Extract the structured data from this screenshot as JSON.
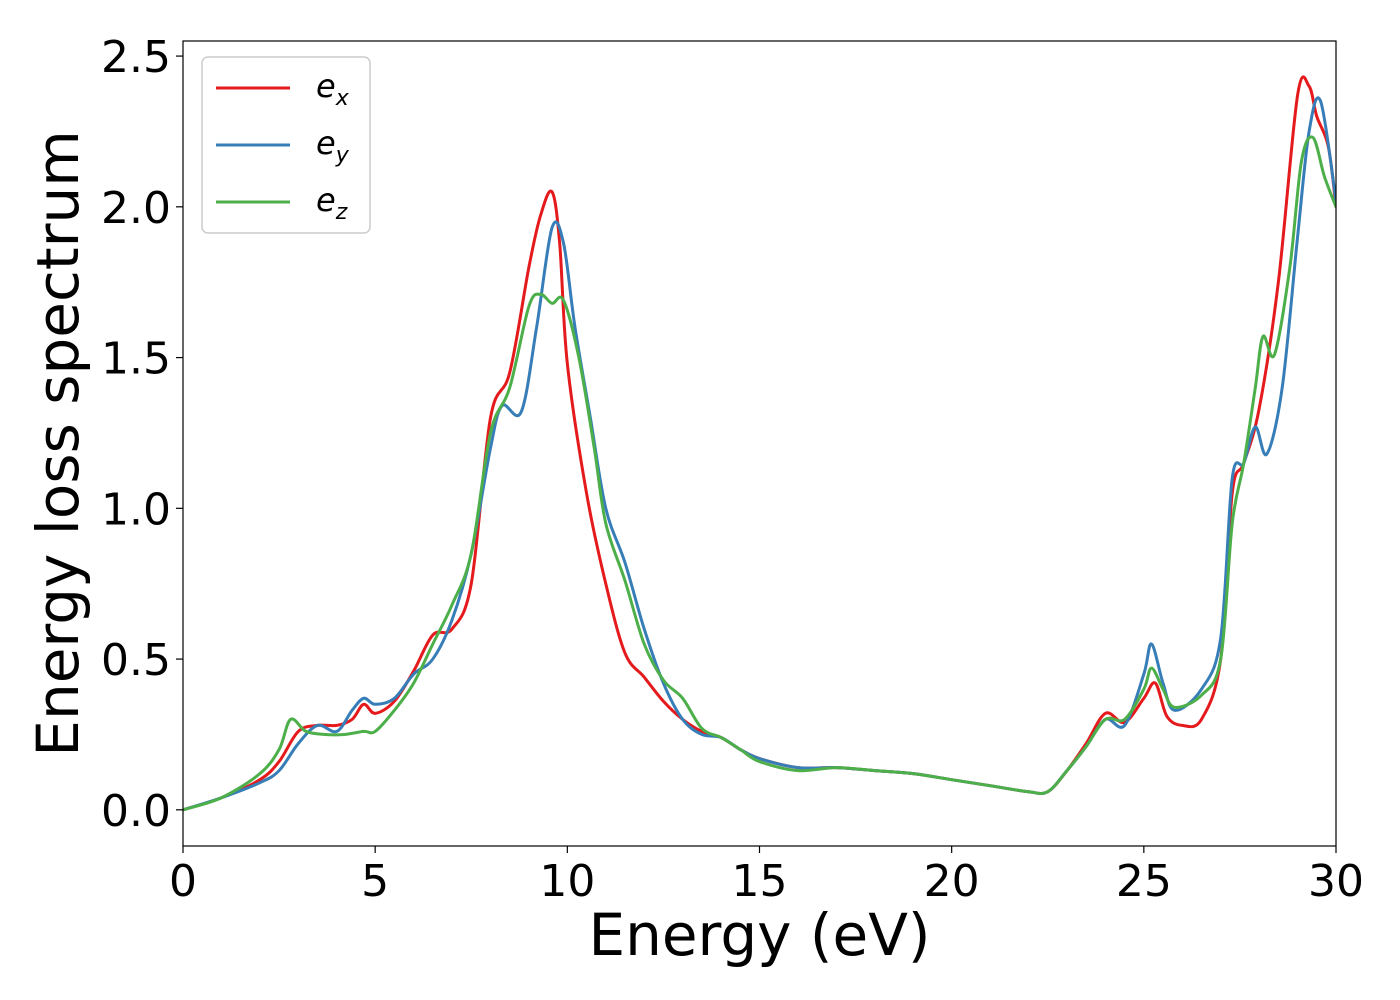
{
  "chart_data": {
    "type": "line",
    "xlabel": "Energy (eV)",
    "ylabel": "Energy loss spectrum",
    "xlim": [
      0,
      30
    ],
    "ylim": [
      -0.12,
      2.55
    ],
    "xticks": [
      0,
      5,
      10,
      15,
      20,
      25,
      30
    ],
    "xtick_labels": [
      "0",
      "5",
      "10",
      "15",
      "20",
      "25",
      "30"
    ],
    "yticks": [
      0.0,
      0.5,
      1.0,
      1.5,
      2.0,
      2.5
    ],
    "ytick_labels": [
      "0.0",
      "0.5",
      "1.0",
      "1.5",
      "2.0",
      "2.5"
    ],
    "grid": false,
    "legend_position": "top-left",
    "series": [
      {
        "name": "e",
        "subscript": "x",
        "color": "#e41a1c",
        "x": [
          0,
          1,
          2,
          2.5,
          3,
          3.5,
          4,
          4.4,
          4.7,
          5,
          5.5,
          6,
          6.5,
          7,
          7.5,
          8,
          8.5,
          9,
          9.3,
          9.6,
          9.8,
          10,
          10.5,
          11,
          11.5,
          12,
          12.5,
          13,
          13.5,
          14,
          14.5,
          15,
          16,
          17,
          18,
          19,
          20,
          21,
          22,
          22.5,
          23,
          23.5,
          24,
          24.5,
          25,
          25.3,
          25.6,
          26,
          26.5,
          27,
          27.3,
          27.6,
          28,
          28.5,
          29,
          29.3,
          29.5,
          29.8,
          30
        ],
        "y": [
          0.0,
          0.04,
          0.1,
          0.16,
          0.26,
          0.28,
          0.28,
          0.3,
          0.35,
          0.32,
          0.36,
          0.46,
          0.58,
          0.6,
          0.75,
          1.3,
          1.45,
          1.8,
          1.97,
          2.05,
          1.88,
          1.48,
          1.05,
          0.75,
          0.52,
          0.44,
          0.36,
          0.3,
          0.26,
          0.24,
          0.2,
          0.17,
          0.14,
          0.14,
          0.13,
          0.12,
          0.1,
          0.08,
          0.06,
          0.06,
          0.13,
          0.22,
          0.32,
          0.29,
          0.37,
          0.42,
          0.31,
          0.28,
          0.3,
          0.5,
          1.05,
          1.15,
          1.33,
          1.75,
          2.37,
          2.4,
          2.3,
          2.2,
          2.0
        ]
      },
      {
        "name": "e",
        "subscript": "y",
        "color": "#377eb8",
        "x": [
          0,
          1,
          2,
          2.5,
          3,
          3.5,
          4,
          4.4,
          4.7,
          5,
          5.5,
          6,
          6.5,
          7,
          7.5,
          8,
          8.3,
          8.8,
          9.2,
          9.6,
          9.9,
          10.2,
          10.6,
          11,
          11.5,
          12,
          12.5,
          13,
          13.5,
          14,
          14.5,
          15,
          16,
          17,
          18,
          19,
          20,
          21,
          22,
          22.5,
          23,
          23.5,
          24,
          24.5,
          25,
          25.2,
          25.5,
          25.8,
          26.5,
          27,
          27.3,
          27.6,
          27.9,
          28.2,
          28.6,
          29,
          29.3,
          29.6,
          30
        ],
        "y": [
          0.0,
          0.04,
          0.09,
          0.13,
          0.22,
          0.28,
          0.26,
          0.33,
          0.37,
          0.35,
          0.37,
          0.45,
          0.5,
          0.63,
          0.85,
          1.2,
          1.34,
          1.32,
          1.6,
          1.93,
          1.88,
          1.6,
          1.3,
          1.0,
          0.82,
          0.6,
          0.42,
          0.3,
          0.25,
          0.24,
          0.2,
          0.17,
          0.14,
          0.14,
          0.13,
          0.12,
          0.1,
          0.08,
          0.06,
          0.06,
          0.13,
          0.21,
          0.3,
          0.28,
          0.45,
          0.55,
          0.42,
          0.33,
          0.4,
          0.57,
          1.1,
          1.15,
          1.27,
          1.18,
          1.4,
          1.9,
          2.25,
          2.35,
          2.02
        ]
      },
      {
        "name": "e",
        "subscript": "z",
        "color": "#4daf4a",
        "x": [
          0,
          1,
          2,
          2.5,
          2.8,
          3.2,
          3.7,
          4.2,
          4.7,
          5,
          5.5,
          6,
          6.5,
          7,
          7.5,
          8,
          8.5,
          9,
          9.3,
          9.6,
          9.9,
          10.3,
          10.7,
          11,
          11.5,
          12,
          12.5,
          13,
          13.5,
          14,
          14.5,
          15,
          16,
          17,
          18,
          19,
          20,
          21,
          22,
          22.5,
          23,
          23.5,
          24,
          24.5,
          25,
          25.2,
          25.5,
          25.8,
          26.5,
          27,
          27.3,
          27.6,
          27.9,
          28.1,
          28.4,
          28.8,
          29.1,
          29.4,
          29.7,
          30
        ],
        "y": [
          0.0,
          0.04,
          0.12,
          0.2,
          0.3,
          0.26,
          0.25,
          0.25,
          0.26,
          0.26,
          0.33,
          0.42,
          0.55,
          0.68,
          0.85,
          1.25,
          1.4,
          1.67,
          1.71,
          1.68,
          1.69,
          1.5,
          1.2,
          0.95,
          0.76,
          0.55,
          0.43,
          0.37,
          0.27,
          0.24,
          0.2,
          0.16,
          0.13,
          0.14,
          0.13,
          0.12,
          0.1,
          0.08,
          0.06,
          0.06,
          0.13,
          0.21,
          0.3,
          0.3,
          0.4,
          0.47,
          0.4,
          0.34,
          0.38,
          0.5,
          0.95,
          1.15,
          1.4,
          1.57,
          1.51,
          1.8,
          2.15,
          2.23,
          2.1,
          2.0
        ]
      }
    ]
  }
}
